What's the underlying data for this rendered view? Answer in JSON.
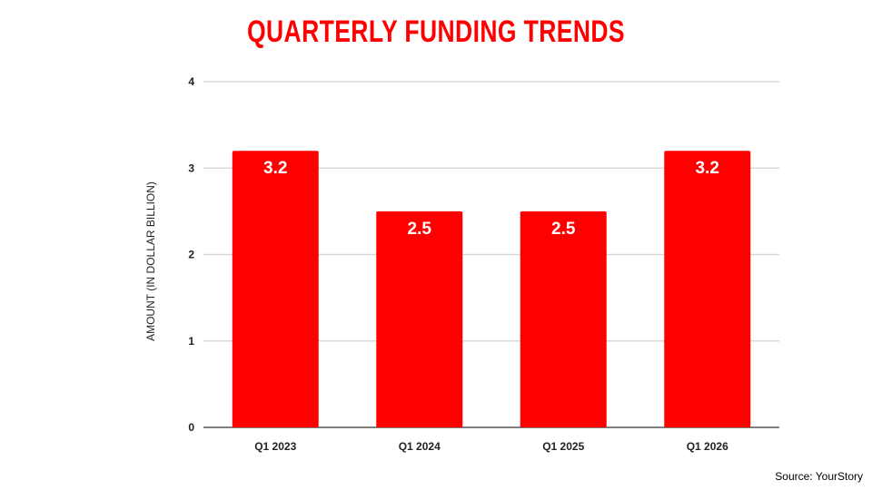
{
  "chart_data": {
    "type": "bar",
    "title": "QUARTERLY FUNDING TRENDS",
    "xlabel": "",
    "ylabel": "AMOUNT (IN DOLLAR BILLION)",
    "categories": [
      "Q1 2023",
      "Q1 2024",
      "Q1 2025",
      "Q1 2026"
    ],
    "values": [
      3.2,
      2.5,
      2.5,
      3.2
    ],
    "data_labels": [
      "3.2",
      "2.5",
      "2.5",
      "3.2"
    ],
    "ylim": [
      0,
      4
    ],
    "yticks": [
      0,
      1,
      2,
      3,
      4
    ],
    "grid": true,
    "bar_color": "#ff0000",
    "source": "Source: YourStory"
  }
}
